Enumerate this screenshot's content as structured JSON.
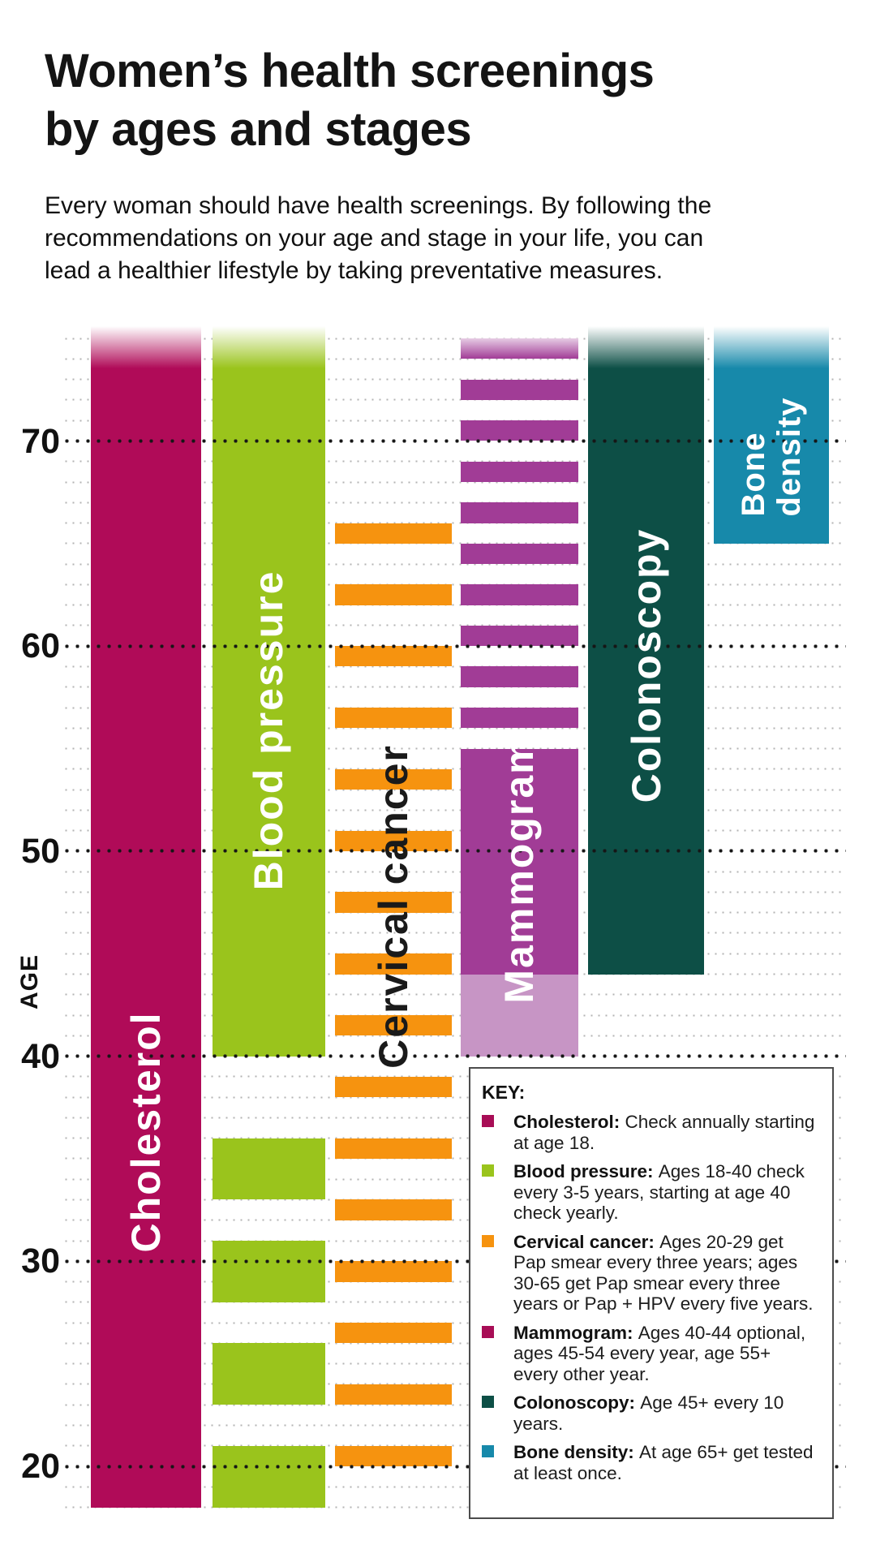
{
  "header": {
    "title_line1": "Women’s health screenings",
    "title_line2": "by ages and stages",
    "subtitle_lines": [
      "Every woman should have health screenings. By following the",
      "recommendations on your age and stage in your life, you can",
      "lead a healthier lifestyle by taking preventative measures."
    ]
  },
  "chart_data": {
    "type": "bar",
    "title": "Women’s health screenings by ages and stages",
    "orientation": "vertical-age-bands",
    "grid": "dotted, minor line every 1 year, major dotted line every 10 years",
    "age_axis": {
      "label": "AGE",
      "major_ticks": [
        70,
        60,
        50,
        40,
        30,
        20
      ],
      "minor_tick_step": 1,
      "min_age": 18,
      "max_age": 75,
      "top_of_bars_age": 75.6
    },
    "columns": [
      {
        "label": "Cholesterol",
        "color": "#b00b58",
        "label_color": "#ffffff",
        "rule": "Check annually starting at age 18.",
        "segments": [
          [
            75.6,
            18,
            "fade"
          ]
        ]
      },
      {
        "label": "Blood pressure",
        "color": "#9ac41c",
        "label_color": "#ffffff",
        "rule": "Ages 18-40 check every 3-5 years, starting at age 40 check yearly.",
        "segments": [
          [
            75.6,
            40,
            "fade"
          ],
          [
            36,
            33,
            "solid"
          ],
          [
            31,
            28,
            "solid"
          ],
          [
            26,
            23,
            "solid"
          ],
          [
            21,
            18,
            "solid"
          ]
        ]
      },
      {
        "label": "Cervical cancer",
        "color": "#f6930f",
        "label_color": "#1a1a1a",
        "rule": "Ages 20-29 get Pap smear every three years; ages 30-65 get Pap smear every three years or Pap + HPV every five years.",
        "segments": [
          [
            66,
            65,
            "solid"
          ],
          [
            63,
            62,
            "solid"
          ],
          [
            60,
            59,
            "solid"
          ],
          [
            57,
            56,
            "solid"
          ],
          [
            54,
            53,
            "solid"
          ],
          [
            51,
            50,
            "solid"
          ],
          [
            48,
            47,
            "solid"
          ],
          [
            45,
            44,
            "solid"
          ],
          [
            42,
            41,
            "solid"
          ],
          [
            39,
            38,
            "solid"
          ],
          [
            36,
            35,
            "solid"
          ],
          [
            33,
            32,
            "solid"
          ],
          [
            30,
            29,
            "solid"
          ],
          [
            27,
            26,
            "solid"
          ],
          [
            24,
            23,
            "solid"
          ],
          [
            21,
            20,
            "solid"
          ]
        ]
      },
      {
        "label": "Mammogram",
        "color": "#a13c96",
        "light_color": "#c795c5",
        "label_color": "#ffffff",
        "rule": "Ages 40-44 optional, ages 45-54 every year, age 55+ every other year.",
        "segments": [
          [
            75,
            74,
            "fadelight"
          ],
          [
            73,
            72,
            "solid"
          ],
          [
            71,
            70,
            "solid"
          ],
          [
            69,
            68,
            "solid"
          ],
          [
            67,
            66,
            "solid"
          ],
          [
            65,
            64,
            "solid"
          ],
          [
            63,
            62,
            "solid"
          ],
          [
            61,
            60,
            "solid"
          ],
          [
            59,
            58,
            "solid"
          ],
          [
            57,
            56,
            "solid"
          ],
          [
            55,
            44,
            "solid"
          ],
          [
            44,
            40,
            "light"
          ]
        ]
      },
      {
        "label": "Colonoscopy",
        "color": "#0d4f46",
        "label_color": "#ffffff",
        "rule": "Age 45+ every 10 years.",
        "segments": [
          [
            75.6,
            44,
            "fade"
          ]
        ]
      },
      {
        "label": "Bone density",
        "label_lines": [
          "Bone",
          "density"
        ],
        "color": "#1789aa",
        "label_color": "#ffffff",
        "rule": "At age 65+ get tested at least once.",
        "segments": [
          [
            75.6,
            65,
            "fade"
          ]
        ]
      }
    ]
  },
  "key": {
    "title": "KEY:",
    "entries": [
      {
        "name": "Cholesterol:",
        "color": "#a80d56",
        "desc": "Check annually starting at age 18."
      },
      {
        "name": "Blood pressure:",
        "color": "#9ac41c",
        "desc": "Ages 18-40 check every 3-5 years, starting at age 40 check yearly."
      },
      {
        "name": "Cervical cancer:",
        "color": "#f6930f",
        "desc": "Ages 20-29 get Pap smear every three years; ages 30-65 get Pap smear every three years or Pap + HPV every five years."
      },
      {
        "name": "Mammogram:",
        "color": "#a80d56",
        "desc": "Ages 40-44 optional, ages 45-54 every year, age 55+ every other year."
      },
      {
        "name": "Colonoscopy:",
        "color": "#0d4f46",
        "desc": "Age 45+ every 10 years."
      },
      {
        "name": "Bone density:",
        "color": "#1789aa",
        "desc": "At age 65+ get tested at least once."
      }
    ]
  }
}
